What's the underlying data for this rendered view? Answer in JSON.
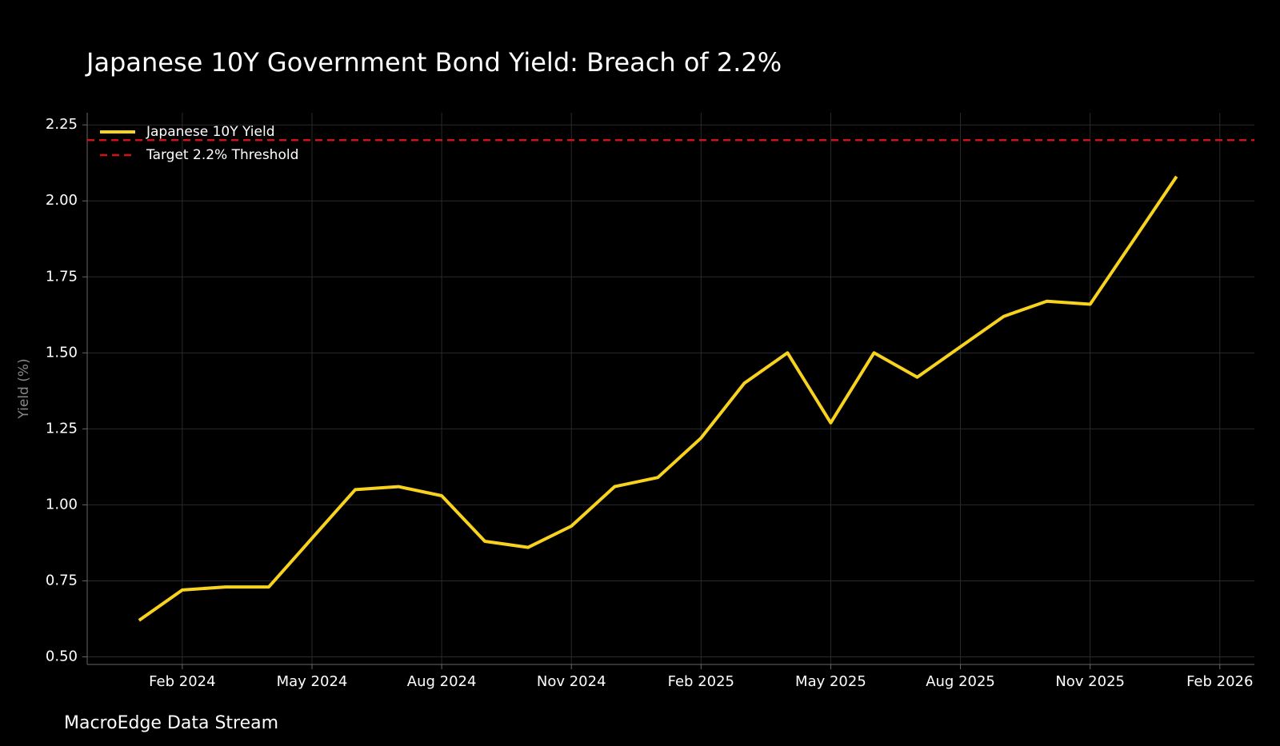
{
  "chart_data": {
    "type": "line",
    "title": "Japanese 10Y Government Bond Yield: Breach of 2.2%",
    "ylabel": "Yield (%)",
    "source": "MacroEdge Data Stream",
    "x": [
      "2024-01",
      "2024-02",
      "2024-03",
      "2024-04",
      "2024-05",
      "2024-06",
      "2024-07",
      "2024-08",
      "2024-09",
      "2024-10",
      "2024-11",
      "2024-12",
      "2025-01",
      "2025-02",
      "2025-03",
      "2025-04",
      "2025-05",
      "2025-06",
      "2025-07",
      "2025-08",
      "2025-09",
      "2025-10",
      "2025-11",
      "2025-12",
      "2026-01"
    ],
    "series": [
      {
        "name": "Japanese 10Y Yield",
        "color": "#f7d21e",
        "values": [
          0.62,
          0.72,
          0.73,
          0.73,
          0.89,
          1.05,
          1.06,
          1.03,
          0.88,
          0.86,
          0.93,
          1.06,
          1.09,
          1.22,
          1.4,
          1.5,
          1.27,
          1.5,
          1.42,
          1.52,
          1.62,
          1.67,
          1.66,
          1.87,
          2.08
        ]
      }
    ],
    "threshold": {
      "name": "Target 2.2% Threshold",
      "value": 2.2,
      "color": "#d0121b"
    },
    "ylim": [
      0.475,
      2.29
    ],
    "yticks": [
      {
        "value": 0.5,
        "label": "0.50"
      },
      0.75,
      {
        "value": 1.0,
        "label": "1.00"
      },
      1.25,
      {
        "value": 1.5,
        "label": "1.50"
      },
      1.75,
      {
        "value": 2.0,
        "label": "2.00"
      },
      2.25
    ],
    "xticks": [
      {
        "value": "2024-02",
        "label": "Feb 2024"
      },
      {
        "value": "2024-05",
        "label": "May 2024"
      },
      {
        "value": "2024-08",
        "label": "Aug 2024"
      },
      {
        "value": "2024-11",
        "label": "Nov 2024"
      },
      {
        "value": "2025-02",
        "label": "Feb 2025"
      },
      {
        "value": "2025-05",
        "label": "May 2025"
      },
      {
        "value": "2025-08",
        "label": "Aug 2025"
      },
      {
        "value": "2025-11",
        "label": "Nov 2025"
      },
      {
        "value": "2026-02",
        "label": "Feb 2026"
      }
    ],
    "grid": true,
    "legend": "upper left"
  }
}
